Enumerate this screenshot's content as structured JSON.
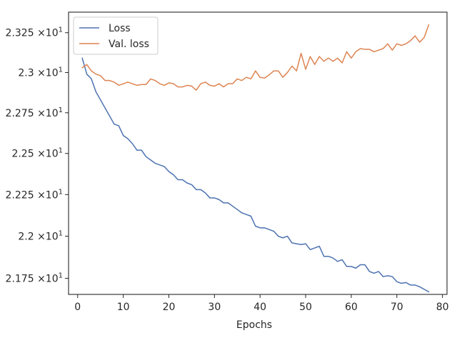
{
  "chart_data": {
    "type": "line",
    "title": "",
    "xlabel": "Epochs",
    "ylabel": "",
    "xlim": [
      -2,
      81
    ],
    "ylim": [
      21.655,
      23.38
    ],
    "y_scale": "log",
    "grid": false,
    "legend_placement": "top-left",
    "x_ticks": [
      0,
      10,
      20,
      30,
      40,
      50,
      60,
      70,
      80
    ],
    "x_tick_labels": [
      "0",
      "10",
      "20",
      "30",
      "40",
      "50",
      "60",
      "70",
      "80"
    ],
    "y_ticks": [
      {
        "value": 21.75,
        "mantissa": "2.175",
        "exp": "1"
      },
      {
        "value": 22.0,
        "mantissa": "2.2",
        "exp": "1"
      },
      {
        "value": 22.25,
        "mantissa": "2.225",
        "exp": "1"
      },
      {
        "value": 22.5,
        "mantissa": "2.25",
        "exp": "1"
      },
      {
        "value": 22.75,
        "mantissa": "2.275",
        "exp": "1"
      },
      {
        "value": 23.0,
        "mantissa": "2.3",
        "exp": "1"
      },
      {
        "value": 23.25,
        "mantissa": "2.325",
        "exp": "1"
      }
    ],
    "y_tick_multiplier": "×10",
    "series": [
      {
        "name": "Loss",
        "color": "#4c72b0",
        "x": [
          1,
          2,
          3,
          4,
          5,
          6,
          7,
          8,
          9,
          10,
          11,
          12,
          13,
          14,
          15,
          16,
          17,
          18,
          19,
          20,
          21,
          22,
          23,
          24,
          25,
          26,
          27,
          28,
          29,
          30,
          31,
          32,
          33,
          34,
          35,
          36,
          37,
          38,
          39,
          40,
          41,
          42,
          43,
          44,
          45,
          46,
          47,
          48,
          49,
          50,
          51,
          52,
          53,
          54,
          55,
          56,
          57,
          58,
          59,
          60,
          61,
          62,
          63,
          64,
          65,
          66,
          67,
          68,
          69,
          70,
          71,
          72,
          73,
          74,
          75,
          76,
          77
        ],
        "y": [
          23.09,
          22.99,
          22.96,
          22.88,
          22.83,
          22.78,
          22.73,
          22.68,
          22.67,
          22.61,
          22.59,
          22.56,
          22.52,
          22.52,
          22.48,
          22.46,
          22.44,
          22.43,
          22.42,
          22.39,
          22.37,
          22.34,
          22.34,
          22.32,
          22.31,
          22.28,
          22.28,
          22.26,
          22.23,
          22.23,
          22.22,
          22.2,
          22.2,
          22.18,
          22.16,
          22.14,
          22.13,
          22.12,
          22.06,
          22.05,
          22.05,
          22.04,
          22.03,
          22.0,
          21.99,
          22.0,
          21.96,
          21.955,
          21.95,
          21.955,
          21.92,
          21.93,
          21.94,
          21.88,
          21.88,
          21.87,
          21.85,
          21.86,
          21.82,
          21.82,
          21.81,
          21.83,
          21.83,
          21.79,
          21.78,
          21.79,
          21.76,
          21.765,
          21.76,
          21.73,
          21.72,
          21.725,
          21.71,
          21.71,
          21.7,
          21.685,
          21.67
        ]
      },
      {
        "name": "Val. loss",
        "color": "#dd8452",
        "x": [
          1,
          2,
          3,
          4,
          5,
          6,
          7,
          8,
          9,
          10,
          11,
          12,
          13,
          14,
          15,
          16,
          17,
          18,
          19,
          20,
          21,
          22,
          23,
          24,
          25,
          26,
          27,
          28,
          29,
          30,
          31,
          32,
          33,
          34,
          35,
          36,
          37,
          38,
          39,
          40,
          41,
          42,
          43,
          44,
          45,
          46,
          47,
          48,
          49,
          50,
          51,
          52,
          53,
          54,
          55,
          56,
          57,
          58,
          59,
          60,
          61,
          62,
          63,
          64,
          65,
          66,
          67,
          68,
          69,
          70,
          71,
          72,
          73,
          74,
          75,
          76,
          77
        ],
        "y": [
          23.03,
          23.05,
          23.01,
          22.99,
          22.98,
          22.95,
          22.95,
          22.94,
          22.92,
          22.93,
          22.94,
          22.93,
          22.92,
          22.925,
          22.925,
          22.96,
          22.95,
          22.93,
          22.92,
          22.935,
          22.93,
          22.91,
          22.91,
          22.92,
          22.915,
          22.89,
          22.93,
          22.94,
          22.92,
          22.915,
          22.93,
          22.91,
          22.93,
          22.93,
          22.96,
          22.95,
          22.97,
          22.96,
          23.01,
          22.97,
          22.965,
          22.985,
          23.01,
          23.01,
          22.97,
          23.0,
          23.04,
          23.01,
          23.12,
          23.02,
          23.1,
          23.05,
          23.1,
          23.07,
          23.09,
          23.07,
          23.09,
          23.06,
          23.13,
          23.09,
          23.13,
          23.15,
          23.145,
          23.145,
          23.13,
          23.14,
          23.15,
          23.18,
          23.14,
          23.18,
          23.17,
          23.18,
          23.2,
          23.23,
          23.19,
          23.22,
          23.3
        ]
      }
    ]
  }
}
